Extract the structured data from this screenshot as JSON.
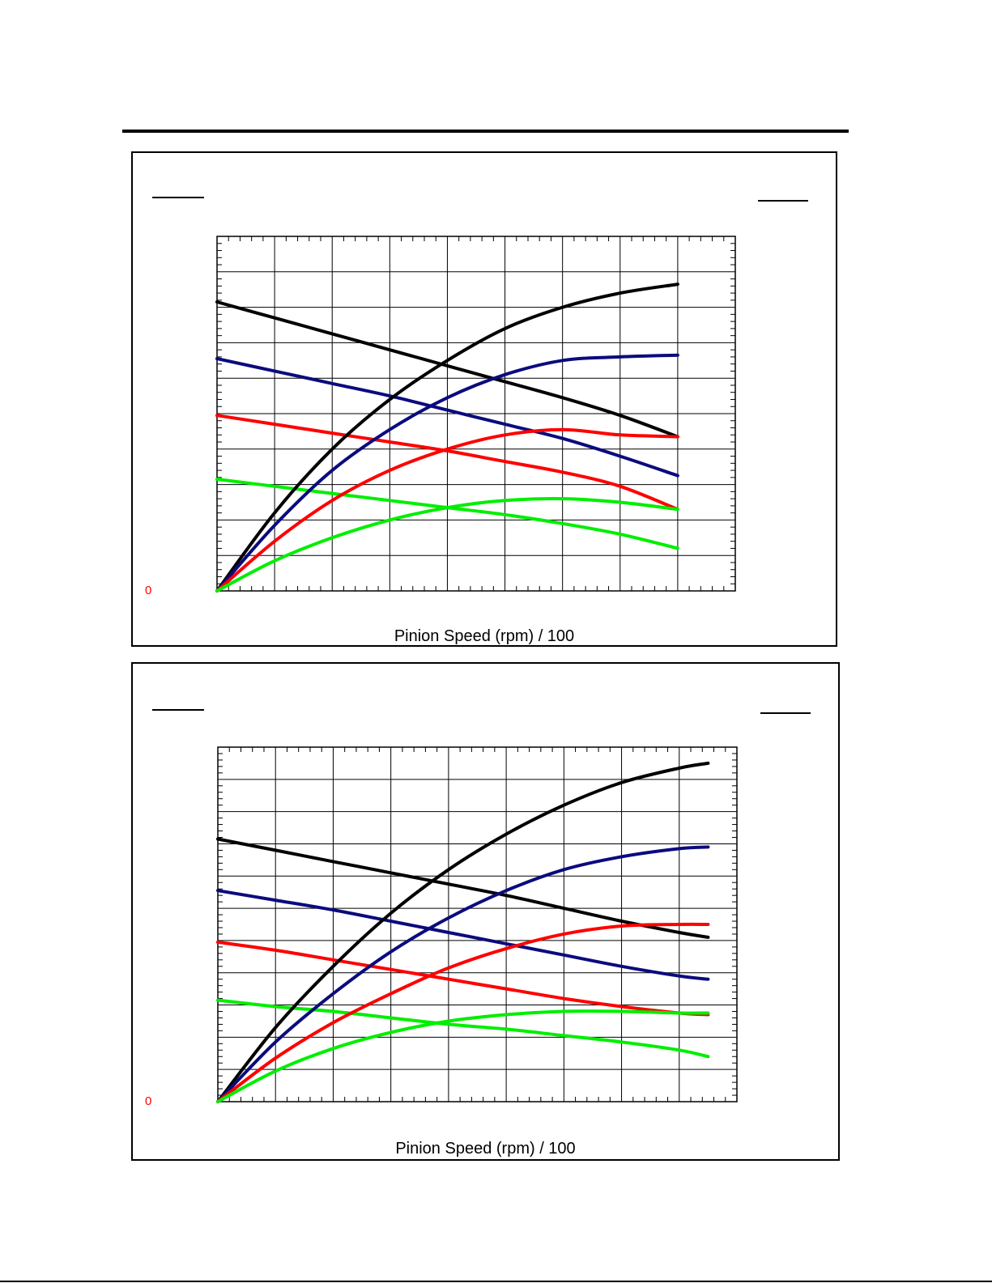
{
  "page": {
    "panels": [
      {
        "zero_label": "0",
        "xlabel": "Pinion Speed (rpm) / 100"
      },
      {
        "zero_label": "0",
        "xlabel": "Pinion Speed (rpm) / 100"
      }
    ]
  },
  "chart_data": [
    {
      "type": "line",
      "title": "",
      "xlabel": "Pinion Speed (rpm) / 100",
      "ylabel": "",
      "xlim": [
        0,
        9
      ],
      "ylim": [
        0,
        10
      ],
      "grid": true,
      "legend": "none",
      "series": [
        {
          "color": "#000000",
          "x": [
            0,
            1,
            2,
            3,
            4,
            5,
            6,
            7,
            8
          ],
          "y": [
            8.15,
            7.7,
            7.25,
            6.8,
            6.35,
            5.9,
            5.45,
            4.95,
            4.35
          ]
        },
        {
          "color": "#0b0b7e",
          "x": [
            0,
            1,
            2,
            3,
            4,
            5,
            6,
            7,
            8
          ],
          "y": [
            6.55,
            6.2,
            5.85,
            5.5,
            5.1,
            4.7,
            4.3,
            3.8,
            3.25
          ]
        },
        {
          "color": "#ff0000",
          "x": [
            0,
            1,
            2,
            3,
            4,
            5,
            6,
            7,
            8
          ],
          "y": [
            4.95,
            4.7,
            4.45,
            4.2,
            3.95,
            3.65,
            3.35,
            2.95,
            2.3
          ]
        },
        {
          "color": "#00ee00",
          "x": [
            0,
            1,
            2,
            3,
            4,
            5,
            6,
            7,
            8
          ],
          "y": [
            3.15,
            2.95,
            2.75,
            2.55,
            2.35,
            2.15,
            1.9,
            1.6,
            1.2
          ]
        },
        {
          "color": "#000000",
          "x": [
            0,
            1,
            2,
            3,
            4,
            5,
            6,
            7,
            8
          ],
          "y": [
            0,
            2.2,
            4.0,
            5.4,
            6.5,
            7.4,
            8.0,
            8.4,
            8.65
          ]
        },
        {
          "color": "#0b0b7e",
          "x": [
            0,
            1,
            2,
            3,
            4,
            5,
            6,
            7,
            8
          ],
          "y": [
            0,
            1.85,
            3.4,
            4.55,
            5.45,
            6.1,
            6.5,
            6.6,
            6.65
          ]
        },
        {
          "color": "#ff0000",
          "x": [
            0,
            1,
            2,
            3,
            4,
            5,
            6,
            7,
            8
          ],
          "y": [
            0,
            1.4,
            2.55,
            3.4,
            4.0,
            4.4,
            4.55,
            4.4,
            4.35
          ]
        },
        {
          "color": "#00ee00",
          "x": [
            0,
            1,
            2,
            3,
            4,
            5,
            6,
            7,
            8
          ],
          "y": [
            0,
            0.85,
            1.5,
            2.0,
            2.35,
            2.55,
            2.6,
            2.5,
            2.3
          ]
        }
      ]
    },
    {
      "type": "line",
      "title": "",
      "xlabel": "Pinion Speed (rpm) / 100",
      "ylabel": "",
      "xlim": [
        0,
        9
      ],
      "ylim": [
        0,
        11
      ],
      "grid": true,
      "legend": "none",
      "series": [
        {
          "color": "#000000",
          "x": [
            0,
            1,
            2,
            3,
            4,
            5,
            6,
            7,
            8,
            8.5
          ],
          "y": [
            8.15,
            7.8,
            7.45,
            7.1,
            6.75,
            6.4,
            6.0,
            5.6,
            5.25,
            5.1
          ]
        },
        {
          "color": "#0b0b7e",
          "x": [
            0,
            1,
            2,
            3,
            4,
            5,
            6,
            7,
            8,
            8.5
          ],
          "y": [
            6.55,
            6.25,
            5.95,
            5.6,
            5.25,
            4.9,
            4.55,
            4.2,
            3.9,
            3.8
          ]
        },
        {
          "color": "#ff0000",
          "x": [
            0,
            1,
            2,
            3,
            4,
            5,
            6,
            7,
            8,
            8.5
          ],
          "y": [
            4.95,
            4.7,
            4.4,
            4.1,
            3.8,
            3.5,
            3.2,
            2.95,
            2.75,
            2.7
          ]
        },
        {
          "color": "#00ee00",
          "x": [
            0,
            1,
            2,
            3,
            4,
            5,
            6,
            7,
            8,
            8.5
          ],
          "y": [
            3.15,
            2.95,
            2.8,
            2.6,
            2.4,
            2.25,
            2.05,
            1.85,
            1.6,
            1.4
          ]
        },
        {
          "color": "#000000",
          "x": [
            0,
            1,
            2,
            3,
            4,
            5,
            6,
            7,
            8,
            8.5
          ],
          "y": [
            0,
            2.3,
            4.2,
            5.85,
            7.2,
            8.3,
            9.2,
            9.9,
            10.35,
            10.5
          ]
        },
        {
          "color": "#0b0b7e",
          "x": [
            0,
            1,
            2,
            3,
            4,
            5,
            6,
            7,
            8,
            8.5
          ],
          "y": [
            0,
            1.85,
            3.35,
            4.65,
            5.7,
            6.55,
            7.2,
            7.6,
            7.85,
            7.9
          ]
        },
        {
          "color": "#ff0000",
          "x": [
            0,
            1,
            2,
            3,
            4,
            5,
            6,
            7,
            8,
            8.5
          ],
          "y": [
            0,
            1.35,
            2.45,
            3.35,
            4.15,
            4.75,
            5.2,
            5.45,
            5.5,
            5.5
          ]
        },
        {
          "color": "#00ee00",
          "x": [
            0,
            1,
            2,
            3,
            4,
            5,
            6,
            7,
            8,
            8.5
          ],
          "y": [
            0,
            0.95,
            1.65,
            2.15,
            2.5,
            2.7,
            2.8,
            2.8,
            2.75,
            2.75
          ]
        }
      ]
    }
  ]
}
